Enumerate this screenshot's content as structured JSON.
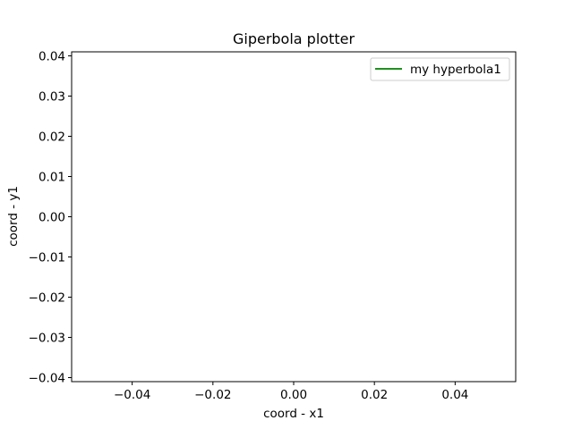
{
  "chart_data": {
    "type": "line",
    "title": "Giperbola plotter",
    "xlabel": "coord - x1",
    "ylabel": "coord - y1",
    "xlim": [
      -0.055,
      0.055
    ],
    "ylim": [
      -0.041,
      0.041
    ],
    "xticks": [
      -0.04,
      -0.02,
      0.0,
      0.02,
      0.04
    ],
    "yticks": [
      -0.04,
      -0.03,
      -0.02,
      -0.01,
      0.0,
      0.01,
      0.02,
      0.03,
      0.04
    ],
    "xtick_labels": [
      "−0.04",
      "−0.02",
      "0.00",
      "0.02",
      "0.04"
    ],
    "ytick_labels": [
      "−0.04",
      "−0.03",
      "−0.02",
      "−0.01",
      "0.00",
      "0.01",
      "0.02",
      "0.03",
      "0.04"
    ],
    "grid": false,
    "legend_position": "top-right",
    "series": [
      {
        "name": "my hyperbola1",
        "color": "#008000",
        "x": [],
        "y": []
      }
    ]
  }
}
